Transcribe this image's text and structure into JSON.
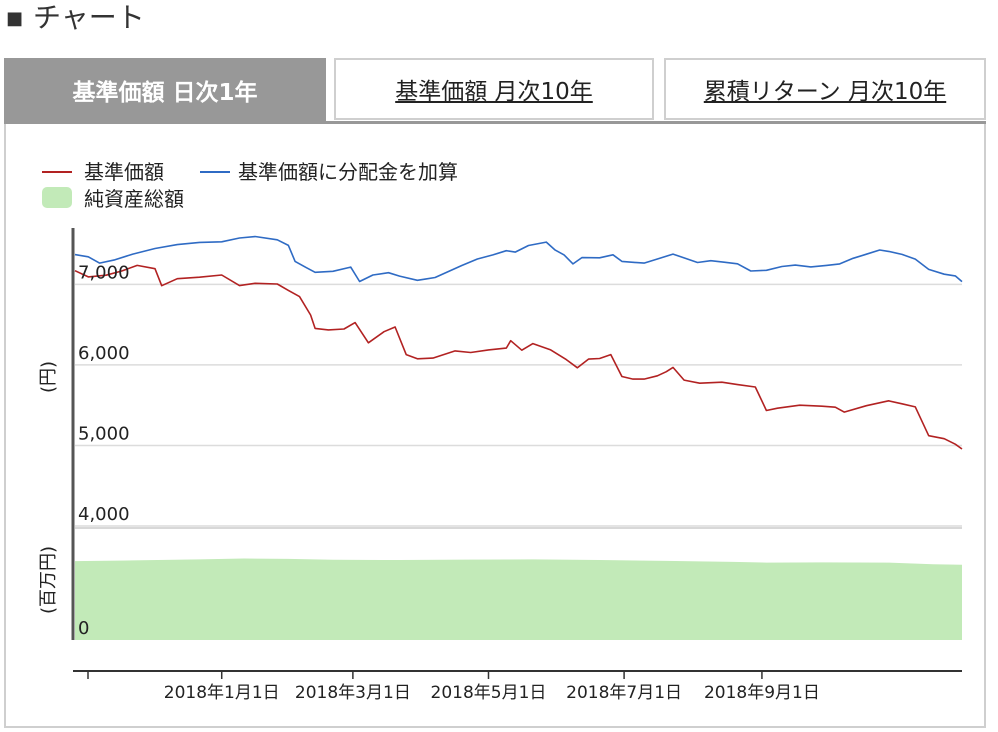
{
  "header": {
    "title": "チャート",
    "marker": "■"
  },
  "tabs": [
    {
      "label": "基準価額 日次1年",
      "active": true
    },
    {
      "label": "基準価額 月次10年",
      "active": false
    },
    {
      "label": "累積リターン 月次10年",
      "active": false
    }
  ],
  "chart_data": {
    "type": "line",
    "title": "",
    "legend": [
      {
        "name": "基準価額",
        "color": "#b22222"
      },
      {
        "name": "基準価額に分配金を加算",
        "color": "#2f6bc4"
      },
      {
        "name": "純資産総額",
        "color": "#c2eab8"
      }
    ],
    "ylabel": "(円)",
    "ylabel_lower": "(百万円)",
    "yticks": [
      4000,
      5000,
      6000,
      7000
    ],
    "yticks_labels": [
      "4,000",
      "5,000",
      "6,000",
      "7,000"
    ],
    "ylim": [
      4000,
      7700
    ],
    "lower_ytick_label": "0",
    "xticks": [
      "2018年1月1日",
      "2018年3月1日",
      "2018年5月1日",
      "2018年7月1日",
      "2018年9月1日"
    ],
    "x_range_days": [
      -66,
      333
    ],
    "x_tick_days": [
      0,
      59,
      120,
      181,
      243
    ],
    "series": [
      {
        "name": "基準価額",
        "color": "#b22222",
        "points": [
          [
            -66,
            7170
          ],
          [
            -60,
            7090
          ],
          [
            -52,
            7110
          ],
          [
            -45,
            7160
          ],
          [
            -38,
            7230
          ],
          [
            -30,
            7190
          ],
          [
            -27,
            6980
          ],
          [
            -20,
            7070
          ],
          [
            -10,
            7090
          ],
          [
            0,
            7120
          ],
          [
            8,
            6990
          ],
          [
            15,
            7020
          ],
          [
            25,
            7010
          ],
          [
            30,
            6930
          ],
          [
            35,
            6850
          ],
          [
            40,
            6620
          ],
          [
            42,
            6450
          ],
          [
            48,
            6430
          ],
          [
            55,
            6440
          ],
          [
            60,
            6520
          ],
          [
            66,
            6270
          ],
          [
            73,
            6410
          ],
          [
            78,
            6470
          ],
          [
            83,
            6130
          ],
          [
            88,
            6080
          ],
          [
            95,
            6090
          ],
          [
            105,
            6180
          ],
          [
            112,
            6160
          ],
          [
            120,
            6190
          ],
          [
            128,
            6210
          ],
          [
            130,
            6300
          ],
          [
            135,
            6180
          ],
          [
            140,
            6260
          ],
          [
            148,
            6180
          ],
          [
            155,
            6060
          ],
          [
            160,
            5960
          ],
          [
            165,
            6070
          ],
          [
            170,
            6080
          ],
          [
            175,
            6130
          ],
          [
            180,
            5860
          ],
          [
            185,
            5830
          ],
          [
            190,
            5830
          ],
          [
            196,
            5870
          ],
          [
            200,
            5920
          ],
          [
            203,
            5970
          ],
          [
            208,
            5810
          ],
          [
            215,
            5770
          ],
          [
            225,
            5780
          ],
          [
            232,
            5750
          ],
          [
            240,
            5720
          ],
          [
            245,
            5430
          ],
          [
            250,
            5460
          ],
          [
            260,
            5500
          ],
          [
            270,
            5490
          ],
          [
            276,
            5480
          ],
          [
            280,
            5420
          ],
          [
            290,
            5500
          ],
          [
            300,
            5560
          ],
          [
            306,
            5520
          ],
          [
            312,
            5480
          ],
          [
            318,
            5120
          ],
          [
            325,
            5080
          ],
          [
            330,
            5010
          ],
          [
            333,
            4950
          ]
        ]
      },
      {
        "name": "基準価額に分配金を加算",
        "color": "#2f6bc4",
        "points": [
          [
            -66,
            7370
          ],
          [
            -60,
            7340
          ],
          [
            -55,
            7260
          ],
          [
            -48,
            7300
          ],
          [
            -40,
            7370
          ],
          [
            -30,
            7440
          ],
          [
            -20,
            7490
          ],
          [
            -10,
            7520
          ],
          [
            0,
            7530
          ],
          [
            8,
            7580
          ],
          [
            15,
            7600
          ],
          [
            25,
            7560
          ],
          [
            30,
            7490
          ],
          [
            33,
            7290
          ],
          [
            38,
            7210
          ],
          [
            42,
            7150
          ],
          [
            50,
            7160
          ],
          [
            58,
            7210
          ],
          [
            62,
            7030
          ],
          [
            68,
            7110
          ],
          [
            75,
            7140
          ],
          [
            80,
            7100
          ],
          [
            88,
            7050
          ],
          [
            92,
            7070
          ],
          [
            96,
            7090
          ],
          [
            100,
            7140
          ],
          [
            108,
            7240
          ],
          [
            115,
            7320
          ],
          [
            122,
            7370
          ],
          [
            128,
            7420
          ],
          [
            132,
            7400
          ],
          [
            138,
            7480
          ],
          [
            146,
            7520
          ],
          [
            150,
            7420
          ],
          [
            154,
            7360
          ],
          [
            158,
            7250
          ],
          [
            162,
            7330
          ],
          [
            170,
            7330
          ],
          [
            176,
            7370
          ],
          [
            180,
            7290
          ],
          [
            185,
            7280
          ],
          [
            190,
            7270
          ],
          [
            196,
            7320
          ],
          [
            203,
            7380
          ],
          [
            208,
            7330
          ],
          [
            214,
            7270
          ],
          [
            220,
            7290
          ],
          [
            226,
            7270
          ],
          [
            232,
            7250
          ],
          [
            238,
            7160
          ],
          [
            245,
            7170
          ],
          [
            252,
            7220
          ],
          [
            258,
            7240
          ],
          [
            265,
            7220
          ],
          [
            272,
            7240
          ],
          [
            278,
            7260
          ],
          [
            284,
            7330
          ],
          [
            290,
            7380
          ],
          [
            296,
            7430
          ],
          [
            300,
            7410
          ],
          [
            306,
            7370
          ],
          [
            312,
            7310
          ],
          [
            318,
            7180
          ],
          [
            325,
            7120
          ],
          [
            330,
            7100
          ],
          [
            333,
            7030
          ]
        ]
      },
      {
        "name": "純資産総額",
        "color": "#c2eab8",
        "area": true,
        "points": [
          [
            -66,
            3650
          ],
          [
            -40,
            3680
          ],
          [
            -10,
            3730
          ],
          [
            10,
            3770
          ],
          [
            30,
            3750
          ],
          [
            50,
            3710
          ],
          [
            80,
            3700
          ],
          [
            110,
            3720
          ],
          [
            140,
            3730
          ],
          [
            170,
            3700
          ],
          [
            200,
            3660
          ],
          [
            230,
            3610
          ],
          [
            245,
            3580
          ],
          [
            270,
            3590
          ],
          [
            300,
            3580
          ],
          [
            320,
            3500
          ],
          [
            333,
            3480
          ]
        ]
      }
    ]
  }
}
